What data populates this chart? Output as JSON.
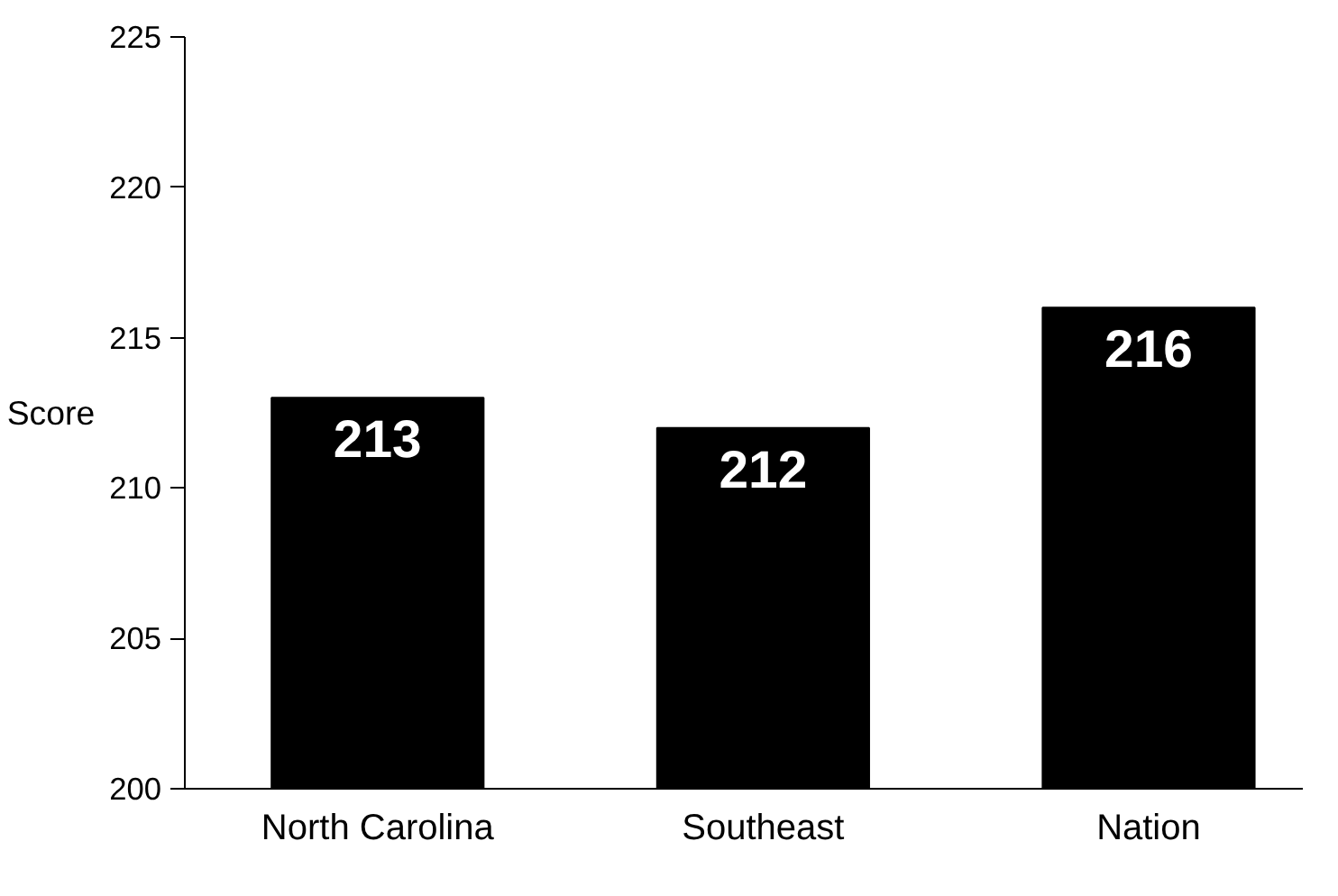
{
  "chart_data": {
    "type": "bar",
    "ylabel": "Score",
    "categories": [
      "North Carolina",
      "Southeast",
      "Nation"
    ],
    "values": [
      213,
      212,
      216
    ],
    "color": "#000000",
    "ylim": [
      200,
      225
    ],
    "yticks": [
      200,
      205,
      210,
      215,
      220,
      225
    ],
    "data_labels": true,
    "grid": false
  }
}
